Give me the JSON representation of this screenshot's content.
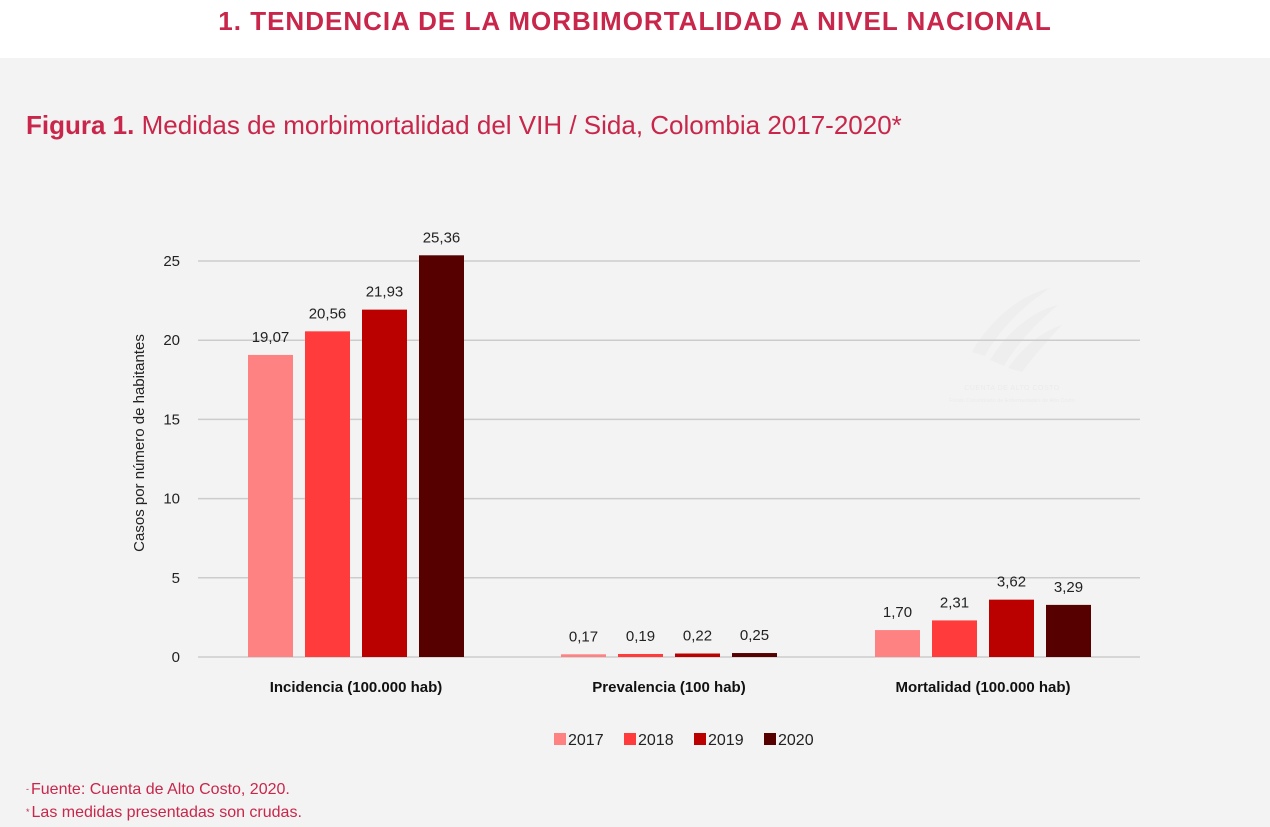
{
  "section_title": "1. TENDENCIA DE LA MORBIMORTALIDAD A NIVEL NACIONAL",
  "figure": {
    "label": "Figura 1.",
    "title": "Medidas de morbimortalidad del VIH / Sida, Colombia 2017-2020*"
  },
  "watermark": {
    "name": "CUENTA DE ALTO COSTO",
    "subtitle": "Fondo Colombiano de Enfermedades de Alto Costo"
  },
  "footnotes": {
    "source_mark": "-",
    "source": "Fuente: Cuenta de Alto Costo, 2020.",
    "note_mark": "*",
    "note": "Las medidas presentadas son crudas."
  },
  "colors": {
    "accent": "#c8264a",
    "series": [
      "#ff8282",
      "#ff3b3b",
      "#bb0000",
      "#560000"
    ],
    "gridline": "#cccccc",
    "panel_bg": "#f3f3f3"
  },
  "chart_data": {
    "type": "bar",
    "ylabel": "Casos por número de habitantes",
    "xlabel": "",
    "ylim": [
      0,
      25
    ],
    "yticks": [
      0,
      5,
      10,
      15,
      20,
      25
    ],
    "grid": true,
    "legend_position": "bottom",
    "categories": [
      "Incidencia (100.000 hab)",
      "Prevalencia (100 hab)",
      "Mortalidad (100.000 hab)"
    ],
    "series": [
      {
        "name": "2017",
        "values": [
          19.07,
          0.17,
          1.7
        ],
        "labels": [
          "19,07",
          "0,17",
          "1,70"
        ]
      },
      {
        "name": "2018",
        "values": [
          20.56,
          0.19,
          2.31
        ],
        "labels": [
          "20,56",
          "0,19",
          "2,31"
        ]
      },
      {
        "name": "2019",
        "values": [
          21.93,
          0.22,
          3.62
        ],
        "labels": [
          "21,93",
          "0,22",
          "3,62"
        ]
      },
      {
        "name": "2020",
        "values": [
          25.36,
          0.25,
          3.29
        ],
        "labels": [
          "25,36",
          "0,25",
          "3,29"
        ]
      }
    ]
  }
}
